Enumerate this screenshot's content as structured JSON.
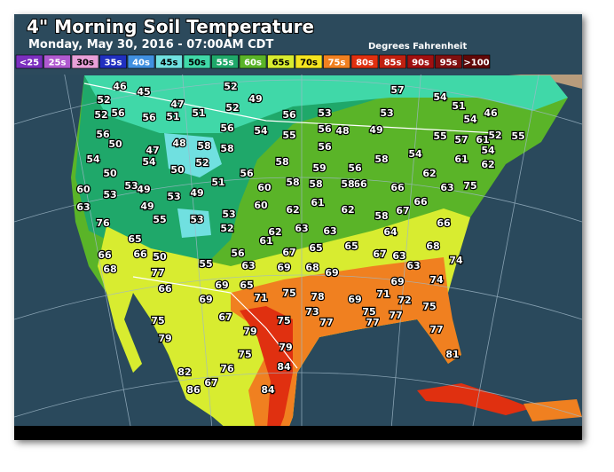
{
  "header": {
    "title": "4\" Morning Soil Temperature",
    "subtitle": "Monday, May 30, 2016 - 07:00AM CDT",
    "units": "Degrees Fahrenheit"
  },
  "legend": [
    {
      "label": "<25",
      "color": "#7b2fbf"
    },
    {
      "label": "25s",
      "color": "#b05ad0"
    },
    {
      "label": "30s",
      "color": "#e8a0d8"
    },
    {
      "label": "35s",
      "color": "#2030c0"
    },
    {
      "label": "40s",
      "color": "#4090e0"
    },
    {
      "label": "45s",
      "color": "#70e0e0"
    },
    {
      "label": "50s",
      "color": "#40d8a8"
    },
    {
      "label": "55s",
      "color": "#1fa86a"
    },
    {
      "label": "60s",
      "color": "#5ab428"
    },
    {
      "label": "65s",
      "color": "#d8ec30"
    },
    {
      "label": "70s",
      "color": "#f4e420"
    },
    {
      "label": "75s",
      "color": "#f08020"
    },
    {
      "label": "80s",
      "color": "#e03010"
    },
    {
      "label": "85s",
      "color": "#c02010"
    },
    {
      "label": "90s",
      "color": "#a01010"
    },
    {
      "label": "95s",
      "color": "#801010"
    },
    {
      "label": ">100",
      "color": "#600808"
    }
  ],
  "stations": [
    52,
    46,
    45,
    52,
    49,
    52,
    47,
    51,
    56,
    51,
    57,
    54,
    51,
    46,
    54,
    53,
    53,
    56,
    52,
    56,
    56,
    50,
    54,
    50,
    53,
    49,
    53,
    60,
    63,
    76,
    49,
    55,
    53,
    49,
    53,
    53,
    52,
    51,
    48,
    47,
    54,
    50,
    52,
    58,
    58,
    56,
    54,
    55,
    56,
    48,
    49,
    56,
    58,
    56,
    60,
    58,
    59,
    56,
    58,
    54,
    55,
    57,
    61,
    61,
    52,
    55,
    54,
    62,
    62,
    63,
    75,
    66,
    67,
    58,
    64,
    62,
    61,
    62,
    60,
    66,
    66,
    58,
    58,
    62,
    63,
    63,
    61,
    67,
    65,
    65,
    67,
    63,
    63,
    68,
    66,
    74,
    74,
    69,
    71,
    72,
    75,
    69,
    78,
    75,
    71,
    65,
    69,
    63,
    69,
    68,
    69,
    56,
    55,
    50,
    66,
    65,
    66,
    68,
    77,
    66,
    69,
    67,
    79,
    75,
    73,
    77,
    75,
    77,
    77,
    77,
    81,
    75,
    79,
    82,
    86,
    67,
    76,
    75,
    79,
    84,
    84
  ]
}
